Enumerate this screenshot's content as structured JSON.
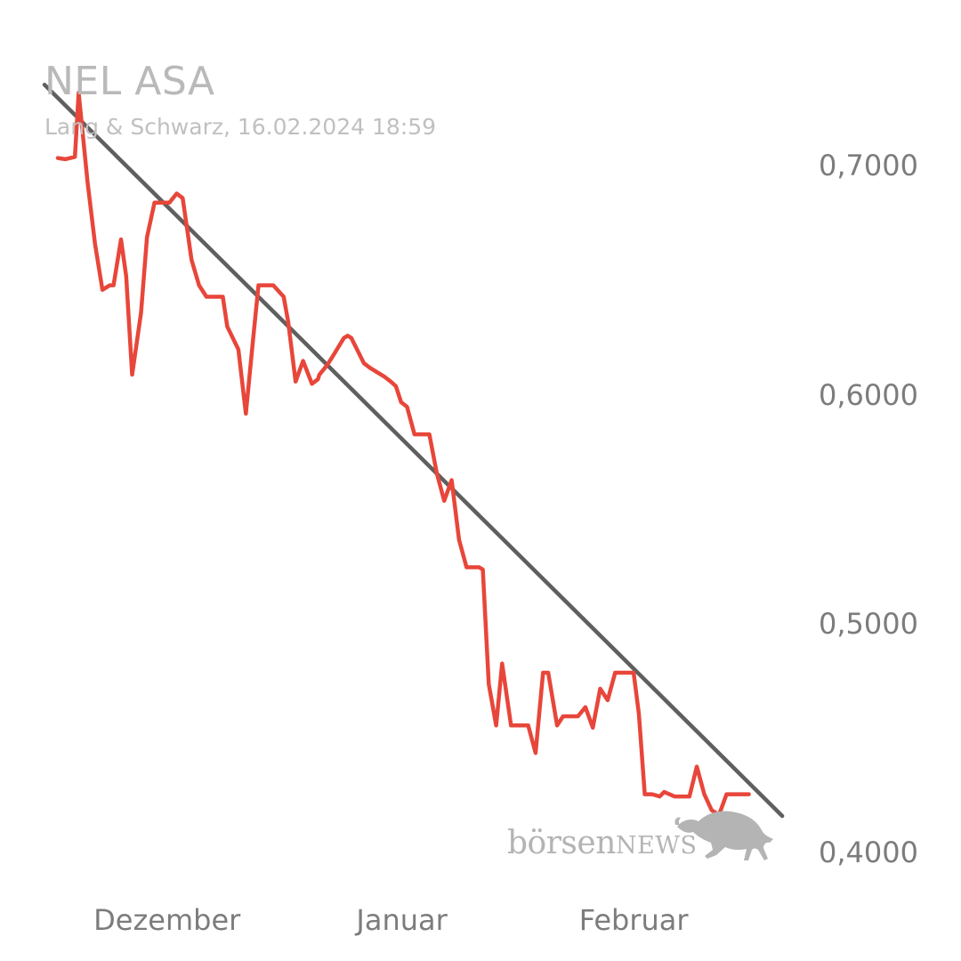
{
  "chart_data": {
    "type": "line",
    "title": "NEL ASA",
    "subtitle": "Lang & Schwarz, 16.02.2024 18:59",
    "xlabel": "",
    "ylabel": "",
    "ylim": [
      0.396,
      0.7395
    ],
    "y_ticks": [
      "0,7000",
      "0,6000",
      "0,5000",
      "0,4000"
    ],
    "y_tick_values": [
      0.7,
      0.6,
      0.5,
      0.4
    ],
    "x_ticks": [
      "Dezember",
      "Januar",
      "Februar"
    ],
    "x_tick_positions": [
      0.147,
      0.463,
      0.775
    ],
    "series": [
      {
        "color": "#e8463a",
        "x": [
          0,
          0.01,
          0.023,
          0.028,
          0.04,
          0.05,
          0.06,
          0.07,
          0.075,
          0.085,
          0.092,
          0.1,
          0.112,
          0.12,
          0.13,
          0.14,
          0.15,
          0.16,
          0.168,
          0.18,
          0.19,
          0.2,
          0.21,
          0.222,
          0.228,
          0.243,
          0.253,
          0.262,
          0.27,
          0.28,
          0.29,
          0.304,
          0.31,
          0.32,
          0.33,
          0.342,
          0.35,
          0.352,
          0.362,
          0.37,
          0.385,
          0.39,
          0.395,
          0.412,
          0.42,
          0.425,
          0.44,
          0.448,
          0.455,
          0.462,
          0.47,
          0.48,
          0.49,
          0.5,
          0.51,
          0.52,
          0.53,
          0.54,
          0.55,
          0.56,
          0.567,
          0.572,
          0.58,
          0.59,
          0.598,
          0.61,
          0.62,
          0.628,
          0.633,
          0.643,
          0.653,
          0.66,
          0.672,
          0.68,
          0.688,
          0.695,
          0.7,
          0.71,
          0.72,
          0.73,
          0.74,
          0.75,
          0.756,
          0.765,
          0.775,
          0.782,
          0.79,
          0.8,
          0.81,
          0.816,
          0.83,
          0.838,
          0.85,
          0.86,
          0.87,
          0.88,
          0.89,
          0.9,
          0.91,
          0.918,
          0.924,
          0.93
        ],
        "values": [
          0.7055,
          0.705,
          0.706,
          0.734,
          0.695,
          0.668,
          0.648,
          0.65,
          0.65,
          0.67,
          0.654,
          0.611,
          0.638,
          0.671,
          0.686,
          0.686,
          0.686,
          0.69,
          0.688,
          0.661,
          0.65,
          0.645,
          0.645,
          0.645,
          0.632,
          0.622,
          0.594,
          0.624,
          0.65,
          0.65,
          0.65,
          0.645,
          0.634,
          0.608,
          0.617,
          0.607,
          0.609,
          0.611,
          0.615,
          0.619,
          0.627,
          0.628,
          0.627,
          0.616,
          0.614,
          0.613,
          0.61,
          0.608,
          0.606,
          0.599,
          0.597,
          0.585,
          0.585,
          0.585,
          0.568,
          0.556,
          0.565,
          0.539,
          0.527,
          0.527,
          0.527,
          0.526,
          0.476,
          0.458,
          0.485,
          0.458,
          0.458,
          0.458,
          0.458,
          0.446,
          0.481,
          0.481,
          0.458,
          0.462,
          0.462,
          0.462,
          0.462,
          0.466,
          0.457,
          0.474,
          0.469,
          0.481,
          0.481,
          0.481,
          0.481,
          0.463,
          0.428,
          0.428,
          0.427,
          0.429,
          0.427,
          0.427,
          0.427,
          0.44,
          0.428,
          0.421,
          0.419,
          0.428,
          0.428,
          0.428,
          0.428,
          0.428
        ]
      }
    ],
    "trendline": {
      "color": "#5f5f5f",
      "x": [
        -0.018,
        0.975
      ],
      "values": [
        0.7375,
        0.4185
      ]
    }
  },
  "watermark": {
    "text_main": "börsen",
    "text_news": "NEWS",
    "color": "#b4b4b4"
  }
}
